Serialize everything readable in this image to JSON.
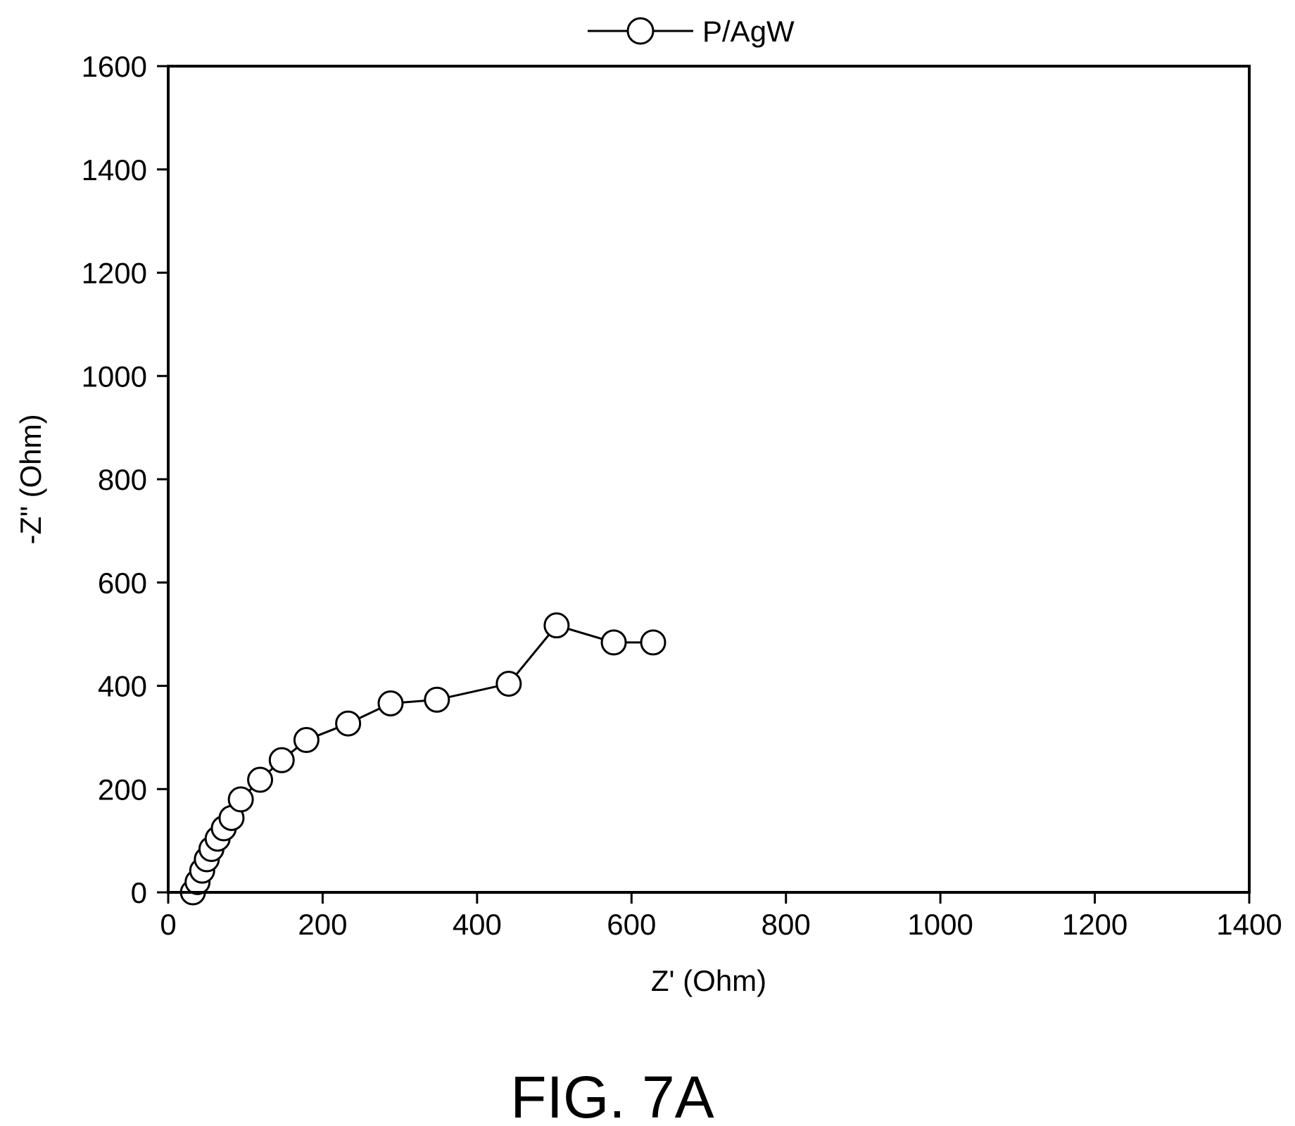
{
  "figure_label": "FIG. 7A",
  "chart_data": {
    "type": "line",
    "title": "",
    "xlabel": "Z' (Ohm)",
    "ylabel": "-Z\" (Ohm)",
    "xlim": [
      0,
      1400
    ],
    "ylim": [
      0,
      1600
    ],
    "xticks": [
      0,
      200,
      400,
      600,
      800,
      1000,
      1200,
      1400
    ],
    "yticks": [
      0,
      200,
      400,
      600,
      800,
      1000,
      1200,
      1400,
      1600
    ],
    "legend_position": "top-center",
    "grid": false,
    "marker": "open-circle",
    "series": [
      {
        "name": "P/AgW",
        "color": "#000000",
        "x": [
          32,
          38,
          44,
          50,
          56,
          64,
          72,
          82,
          94,
          119,
          147,
          179,
          233,
          288,
          348,
          441,
          503,
          577,
          628
        ],
        "y": [
          0,
          20,
          42,
          64,
          84,
          104,
          124,
          144,
          180,
          218,
          256,
          295,
          327,
          366,
          373,
          404,
          517,
          484,
          484
        ]
      }
    ]
  }
}
